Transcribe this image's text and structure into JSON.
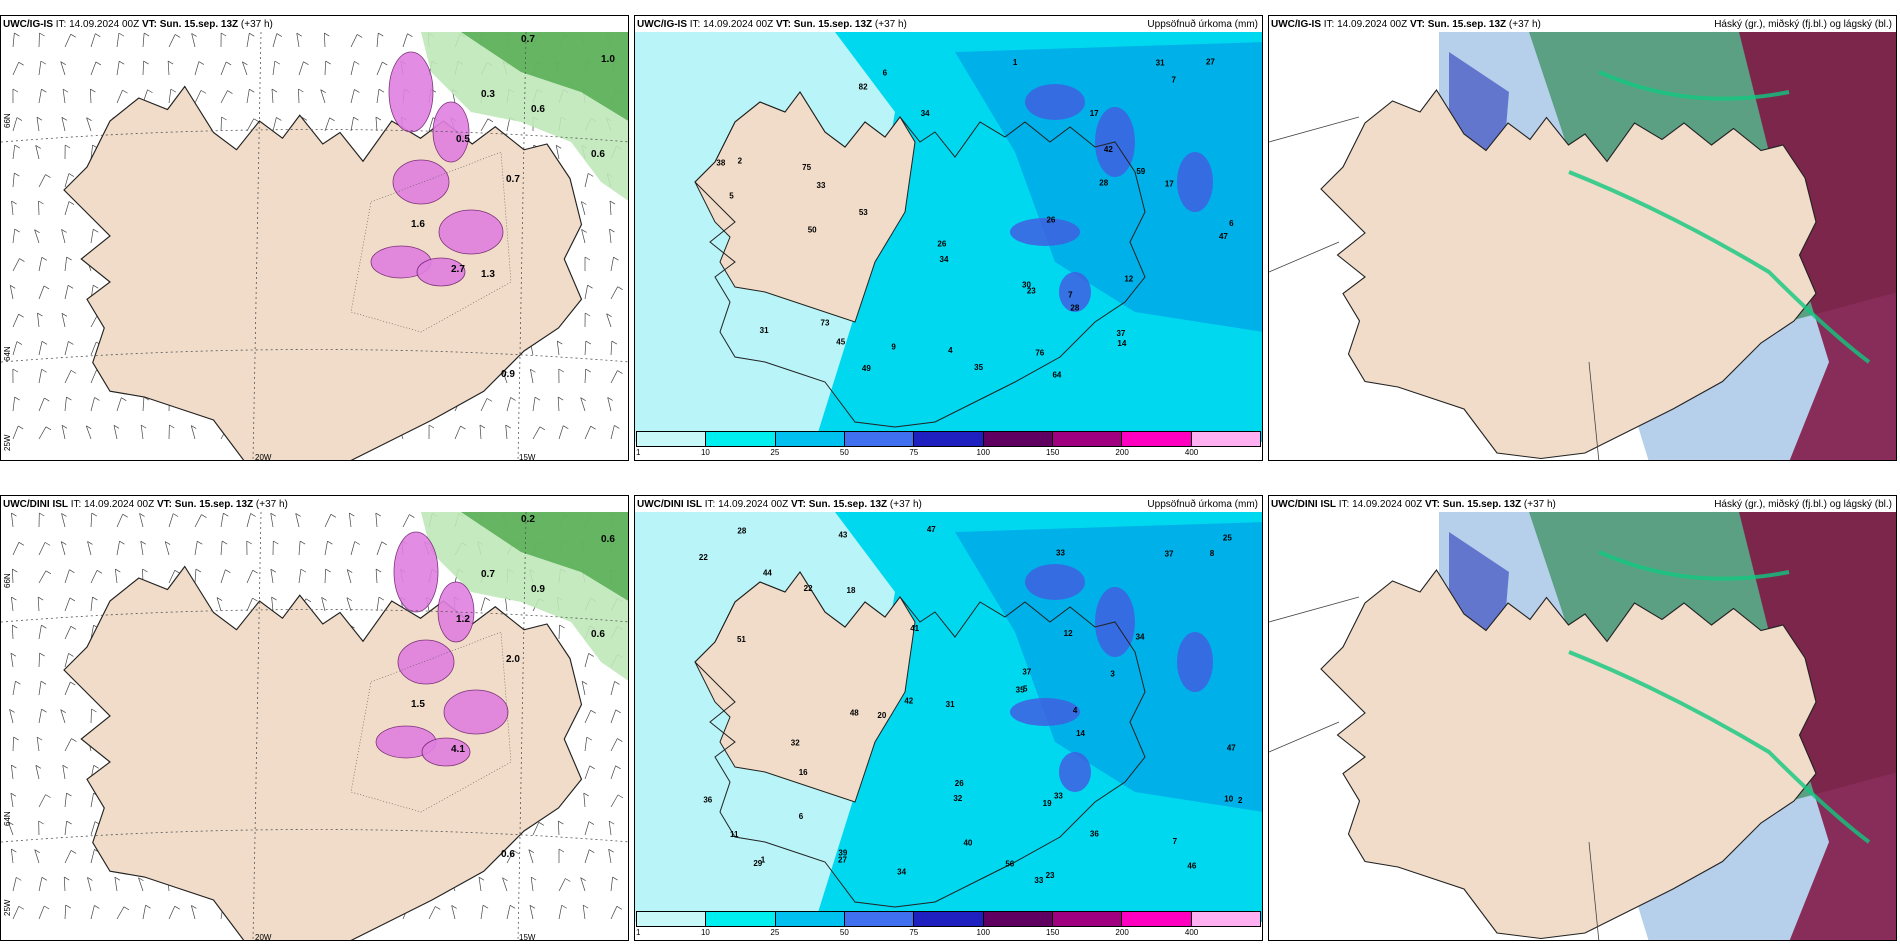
{
  "panels": [
    {
      "id": "p1",
      "model": "UWC/IG-IS",
      "it_label": "IT:",
      "it": "14.09.2024 00Z",
      "vt_label": "VT:",
      "vt": "Sun. 15.sep. 13Z",
      "lead": "(+37 h)",
      "right_title": "",
      "type": "wind"
    },
    {
      "id": "p2",
      "model": "UWC/IG-IS",
      "it_label": "IT:",
      "it": "14.09.2024 00Z",
      "vt_label": "VT:",
      "vt": "Sun. 15.sep. 13Z",
      "lead": "(+37 h)",
      "right_title": "Uppsöfnuð úrkoma (mm)",
      "type": "precip"
    },
    {
      "id": "p3",
      "model": "UWC/IG-IS",
      "it_label": "IT:",
      "it": "14.09.2024 00Z",
      "vt_label": "VT:",
      "vt": "Sun. 15.sep. 13Z",
      "lead": "(+37 h)",
      "right_title": "Háský (gr.), miðský (fj.bl.) og lágský (bl.)",
      "type": "cloud"
    },
    {
      "id": "p4",
      "model": "UWC/DINI ISL",
      "it_label": "IT:",
      "it": "14.09.2024 00Z",
      "vt_label": "VT:",
      "vt": "Sun. 15.sep. 13Z",
      "lead": "(+37 h)",
      "right_title": "",
      "type": "wind"
    },
    {
      "id": "p5",
      "model": "UWC/DINI ISL",
      "it_label": "IT:",
      "it": "14.09.2024 00Z",
      "vt_label": "VT:",
      "vt": "Sun. 15.sep. 13Z",
      "lead": "(+37 h)",
      "right_title": "Uppsöfnuð úrkoma (mm)",
      "type": "precip"
    },
    {
      "id": "p6",
      "model": "UWC/DINI ISL",
      "it_label": "IT:",
      "it": "14.09.2024 00Z",
      "vt_label": "VT:",
      "vt": "Sun. 15.sep. 13Z",
      "lead": "(+37 h)",
      "right_title": "Háský (gr.), miðský (fj.bl.) og lágský (bl.)",
      "type": "cloud"
    }
  ],
  "axis_labels": {
    "lat66": "66N",
    "lat64": "64N",
    "lon20": "20W",
    "lon15": "15W",
    "lon25": "25W"
  },
  "legend": {
    "ticks": [
      "1",
      "10",
      "25",
      "50",
      "75",
      "100",
      "150",
      "200",
      "400"
    ],
    "colors": [
      "#c8f8f8",
      "#00eeee",
      "#00c0f0",
      "#4070f0",
      "#2020c0",
      "#600060",
      "#a00080",
      "#ff00c0",
      "#ffb0f0"
    ]
  },
  "colors": {
    "land": "#f0dcc8",
    "sea_precip": "#b8f4f8",
    "precip_mid": "#00d8f0",
    "precip_hi": "#4060e0",
    "snow": "#e080e0",
    "green": "#4ca84c",
    "cloud_high": "#208040",
    "cloud_mid": "#4050c0",
    "cloud_low": "#c03020",
    "maroon": "#801040"
  },
  "precip_labels_top": [
    "64",
    "82",
    "73",
    "75",
    "59",
    "76",
    "47",
    "53",
    "34",
    "45",
    "31",
    "38",
    "26",
    "30",
    "28",
    "31",
    "5",
    "7",
    "12",
    "17",
    "37",
    "23",
    "49",
    "14",
    "26",
    "42",
    "50",
    "33",
    "35",
    "34",
    "28",
    "27",
    "17",
    "9",
    "6",
    "4",
    "1",
    "2",
    "6",
    "7"
  ],
  "precip_labels_bottom": [
    "34",
    "33",
    "39",
    "36",
    "43",
    "44",
    "48",
    "46",
    "47",
    "41",
    "37",
    "40",
    "42",
    "32",
    "33",
    "35",
    "51",
    "27",
    "20",
    "22",
    "19",
    "25",
    "37",
    "29",
    "34",
    "32",
    "36",
    "16",
    "28",
    "14",
    "31",
    "23",
    "26",
    "8",
    "6",
    "4",
    "10",
    "11",
    "12",
    "7",
    "5",
    "3",
    "2",
    "1",
    "18",
    "33",
    "47",
    "56",
    "22"
  ],
  "wind_labels_top": [
    "0.7",
    "0.6",
    "0.6",
    "0.3",
    "1.0",
    "0.5",
    "0.7",
    "0.9",
    "1.6",
    "2.7",
    "1.3"
  ],
  "wind_labels_bottom": [
    "0.2",
    "0.9",
    "0.6",
    "0.7",
    "0.6",
    "1.2",
    "2.0",
    "0.6",
    "1.5",
    "4.1"
  ]
}
